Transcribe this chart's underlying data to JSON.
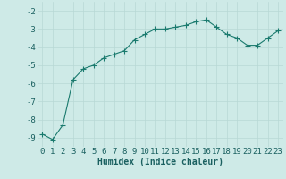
{
  "x": [
    0,
    1,
    2,
    3,
    4,
    5,
    6,
    7,
    8,
    9,
    10,
    11,
    12,
    13,
    14,
    15,
    16,
    17,
    18,
    19,
    20,
    21,
    22,
    23
  ],
  "y": [
    -8.8,
    -9.1,
    -8.3,
    -5.8,
    -5.2,
    -5.0,
    -4.6,
    -4.4,
    -4.2,
    -3.6,
    -3.3,
    -3.0,
    -3.0,
    -2.9,
    -2.8,
    -2.6,
    -2.5,
    -2.9,
    -3.3,
    -3.5,
    -3.9,
    -3.9,
    -3.5,
    -3.1
  ],
  "line_color": "#1a7a6e",
  "marker": "+",
  "marker_size": 4,
  "bg_color": "#ceeae7",
  "grid_color": "#b8d8d5",
  "xlabel": "Humidex (Indice chaleur)",
  "xlabel_fontsize": 7,
  "tick_fontsize": 6.5,
  "xlim": [
    -0.5,
    23.5
  ],
  "ylim": [
    -9.5,
    -1.5
  ],
  "yticks": [
    -9,
    -8,
    -7,
    -6,
    -5,
    -4,
    -3,
    -2
  ],
  "xticks": [
    0,
    1,
    2,
    3,
    4,
    5,
    6,
    7,
    8,
    9,
    10,
    11,
    12,
    13,
    14,
    15,
    16,
    17,
    18,
    19,
    20,
    21,
    22,
    23
  ],
  "tick_color": "#1a6060",
  "label_color": "#1a6060"
}
